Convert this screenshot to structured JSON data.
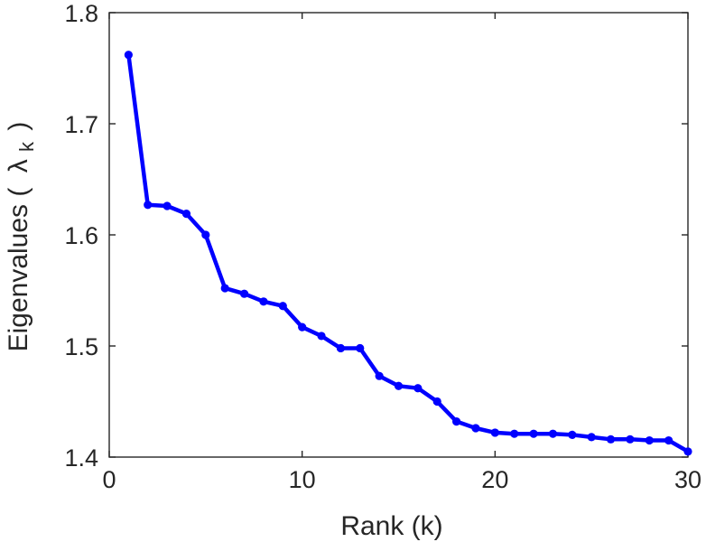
{
  "chart_data": {
    "type": "line",
    "title": "",
    "xlabel": "Rank (k)",
    "ylabel_text": "Eigenvalues (",
    "ylabel_symbol": "λ",
    "ylabel_subscript": "k",
    "ylabel_close": ")",
    "xlim": [
      0,
      30
    ],
    "ylim": [
      1.4,
      1.8
    ],
    "xticks": [
      0,
      10,
      20,
      30
    ],
    "xtick_labels": [
      "0",
      "10",
      "20",
      "30"
    ],
    "yticks": [
      1.4,
      1.5,
      1.6,
      1.7,
      1.8
    ],
    "ytick_labels": [
      "1.4",
      "1.5",
      "1.6",
      "1.7",
      "1.8"
    ],
    "grid": false,
    "box": true,
    "series": [
      {
        "color": "#0000ff",
        "marker": "circle",
        "x": [
          1,
          2,
          3,
          4,
          5,
          6,
          7,
          8,
          9,
          10,
          11,
          12,
          13,
          14,
          15,
          16,
          17,
          18,
          19,
          20,
          21,
          22,
          23,
          24,
          25,
          26,
          27,
          28,
          29,
          30
        ],
        "y": [
          1.762,
          1.627,
          1.626,
          1.619,
          1.6,
          1.552,
          1.547,
          1.54,
          1.536,
          1.517,
          1.509,
          1.498,
          1.498,
          1.473,
          1.464,
          1.462,
          1.45,
          1.432,
          1.426,
          1.422,
          1.421,
          1.421,
          1.421,
          1.42,
          1.418,
          1.416,
          1.416,
          1.415,
          1.415,
          1.405
        ]
      }
    ]
  }
}
